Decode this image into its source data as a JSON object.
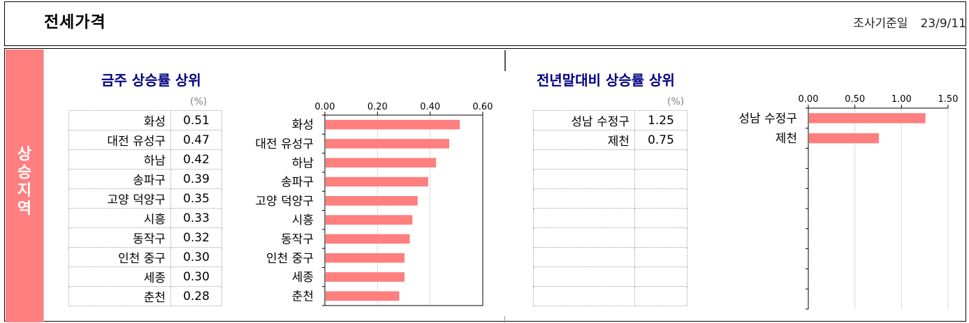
{
  "header": {
    "title": "전세가격",
    "survey_label": "조사기준일",
    "survey_date": "23/9/11"
  },
  "sidebar": {
    "label": [
      "상",
      "승",
      "지",
      "역"
    ]
  },
  "left": {
    "title": "금주 상승률 상위",
    "unit": "(%)",
    "rows": [
      {
        "name": "화성",
        "value": "0.51"
      },
      {
        "name": "대전 유성구",
        "value": "0.47"
      },
      {
        "name": "하남",
        "value": "0.42"
      },
      {
        "name": "송파구",
        "value": "0.39"
      },
      {
        "name": "고양 덕양구",
        "value": "0.35"
      },
      {
        "name": "시흥",
        "value": "0.33"
      },
      {
        "name": "동작구",
        "value": "0.32"
      },
      {
        "name": "인천 중구",
        "value": "0.30"
      },
      {
        "name": "세종",
        "value": "0.30"
      },
      {
        "name": "춘천",
        "value": "0.28"
      }
    ]
  },
  "right": {
    "title": "전년말대비 상승률 상위",
    "unit": "(%)",
    "rows": [
      {
        "name": "성남 수정구",
        "value": "1.25"
      },
      {
        "name": "제천",
        "value": "0.75"
      },
      {
        "name": "",
        "value": ""
      },
      {
        "name": "",
        "value": ""
      },
      {
        "name": "",
        "value": ""
      },
      {
        "name": "",
        "value": ""
      },
      {
        "name": "",
        "value": ""
      },
      {
        "name": "",
        "value": ""
      },
      {
        "name": "",
        "value": ""
      },
      {
        "name": "",
        "value": ""
      }
    ]
  },
  "colors": {
    "bar": "#ff7f7f",
    "sidebar": "#ff7f7f",
    "title": "#000080"
  },
  "chart_data": [
    {
      "type": "bar",
      "orientation": "horizontal",
      "categories": [
        "화성",
        "대전 유성구",
        "하남",
        "송파구",
        "고양 덕양구",
        "시흥",
        "동작구",
        "인천 중구",
        "세종",
        "춘천"
      ],
      "values": [
        0.51,
        0.47,
        0.42,
        0.39,
        0.35,
        0.33,
        0.32,
        0.3,
        0.3,
        0.28
      ],
      "xlim": [
        0,
        0.6
      ],
      "xticks": [
        "0.00",
        "0.20",
        "0.40",
        "0.60"
      ],
      "grid": true,
      "axis_position": "top"
    },
    {
      "type": "bar",
      "orientation": "horizontal",
      "categories": [
        "성남 수정구",
        "제천"
      ],
      "values": [
        1.25,
        0.75
      ],
      "slots": 10,
      "xlim": [
        0,
        1.5
      ],
      "xticks": [
        "0.00",
        "0.50",
        "1.00",
        "1.50"
      ],
      "grid": true,
      "axis_position": "top"
    }
  ]
}
